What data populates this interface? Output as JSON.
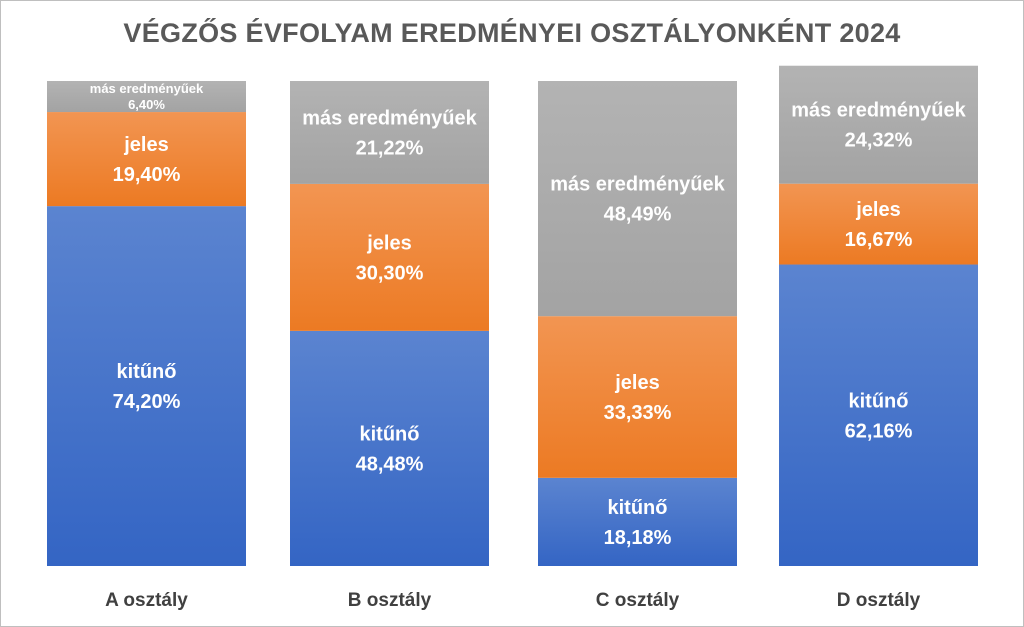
{
  "chart_data": {
    "type": "bar",
    "stacked": true,
    "percent": true,
    "title": "VÉGZŐS ÉVFOLYAM EREDMÉNYEI OSZTÁLYONKÉNT 2024",
    "categories": [
      "A osztály",
      "B osztály",
      "C osztály",
      "D osztály"
    ],
    "series": [
      {
        "name": "kitűnő",
        "values": [
          74.2,
          48.48,
          18.18,
          62.16
        ],
        "labels": [
          "74,20%",
          "48,48%",
          "18,18%",
          "62,16%"
        ]
      },
      {
        "name": "jeles",
        "values": [
          19.4,
          30.3,
          33.33,
          16.67
        ],
        "labels": [
          "19,40%",
          "30,30%",
          "33,33%",
          "16,67%"
        ]
      },
      {
        "name": "más eredményűek",
        "values": [
          6.4,
          21.22,
          48.49,
          24.32
        ],
        "labels": [
          "6,40%",
          "21,22%",
          "48,49%",
          "24,32%"
        ]
      }
    ],
    "ylim": [
      0,
      100
    ],
    "grid": false,
    "legend": "none"
  },
  "colors": {
    "kitűnő": [
      "#5b84d0",
      "#3465c4"
    ],
    "jeles": [
      "#f29552",
      "#ec7a23"
    ],
    "más eredményűek": [
      "#b3b3b3",
      "#a3a3a3"
    ]
  }
}
